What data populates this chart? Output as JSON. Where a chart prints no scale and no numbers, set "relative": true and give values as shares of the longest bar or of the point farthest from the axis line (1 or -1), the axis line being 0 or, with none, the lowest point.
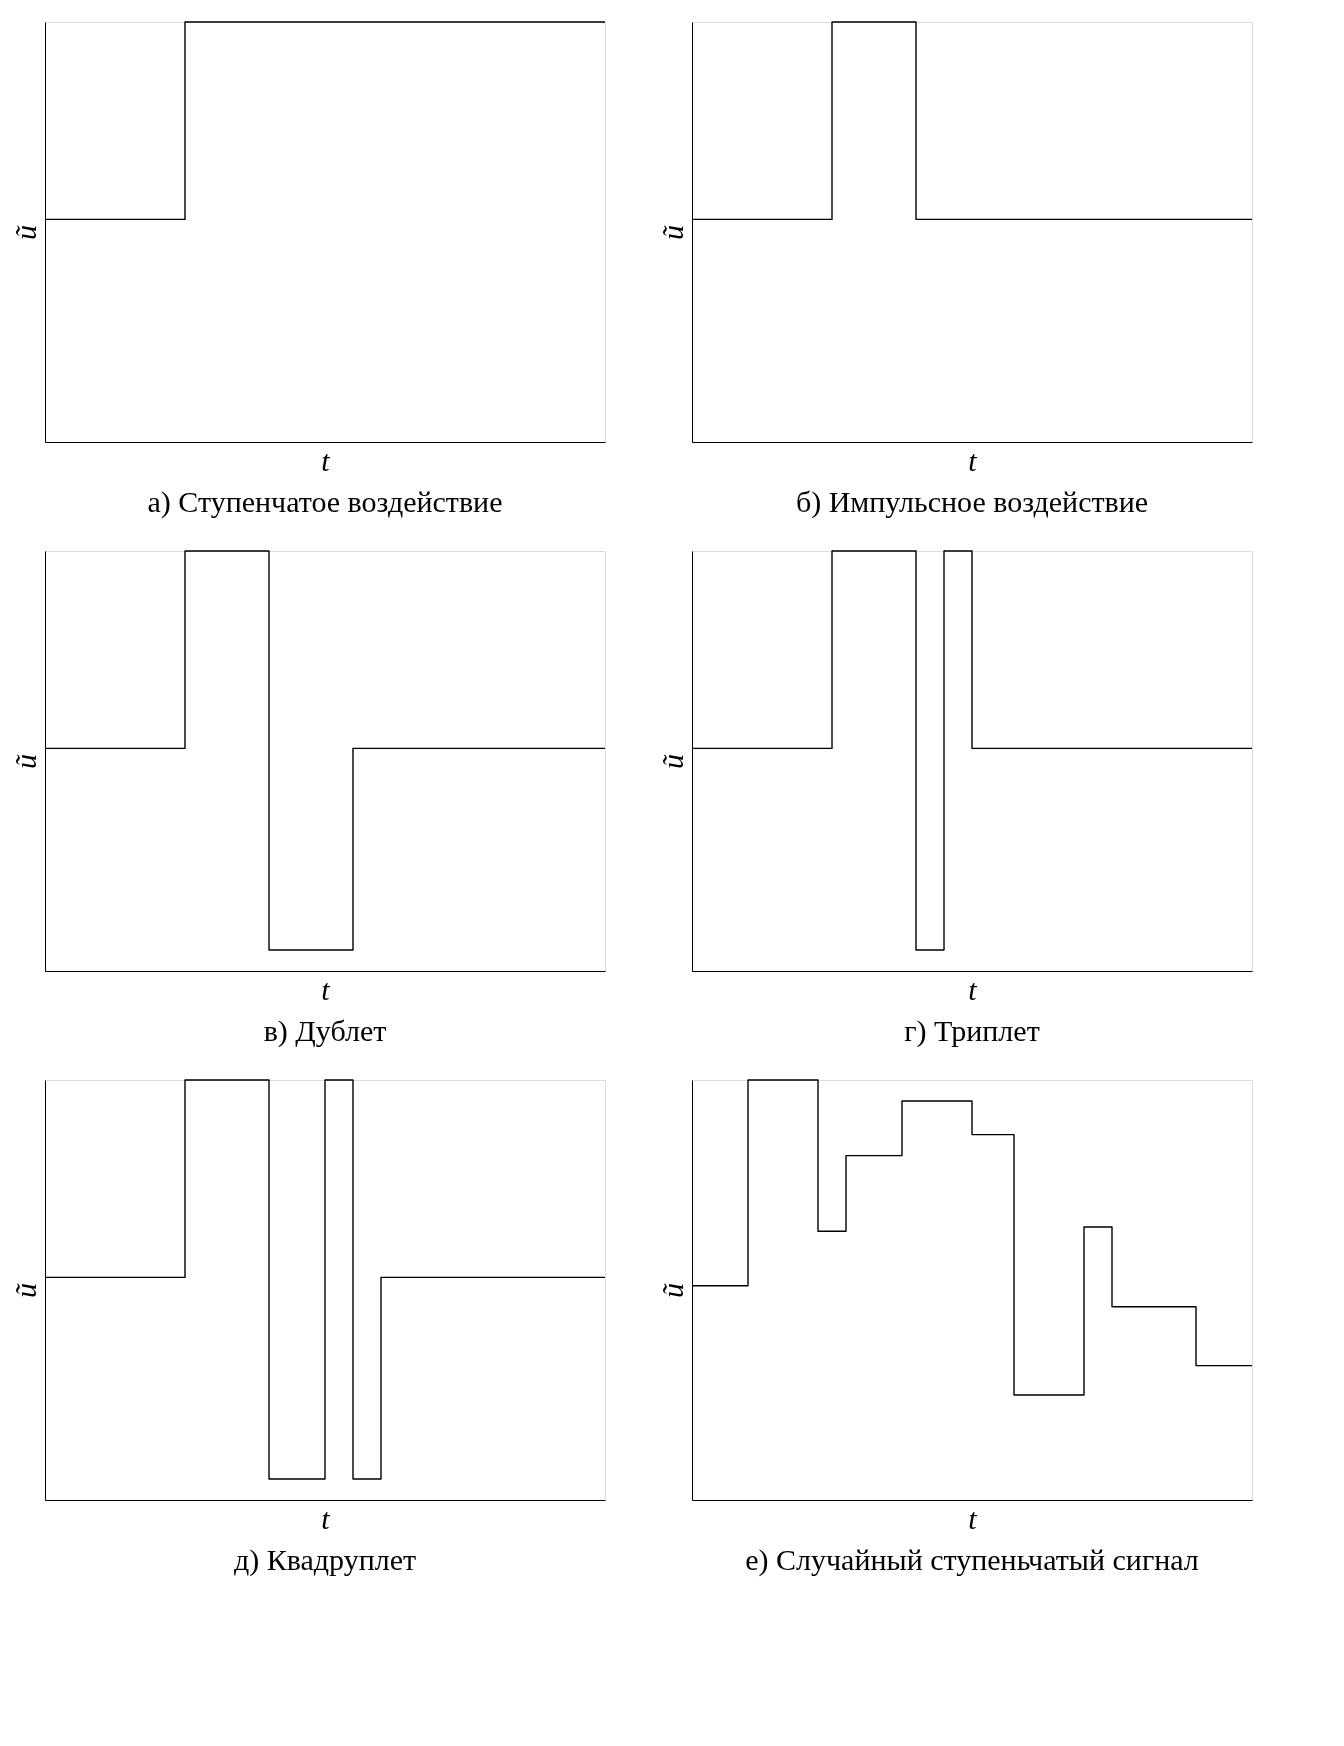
{
  "chart_data": [
    {
      "type": "step",
      "relative": true,
      "title": "а) Ступенчатое воздействие",
      "xlabel": "t",
      "ylabel": "ũ",
      "categories": [
        null,
        null,
        null,
        null,
        null,
        null,
        null,
        null,
        null,
        null,
        null,
        null,
        null,
        null,
        null,
        null,
        null,
        null,
        null,
        null,
        null,
        null,
        null,
        null,
        null,
        null,
        null,
        null,
        null,
        null,
        null,
        null,
        null,
        null,
        null,
        null,
        null,
        null,
        null,
        null,
        null
      ],
      "series": [
        {
          "color": "#000000",
          "values": [
            0.53,
            0.53,
            0.53,
            0.53,
            0.53,
            0.53,
            0.53,
            0.53,
            0.53,
            0.53,
            1,
            1,
            1,
            1,
            1,
            1,
            1,
            1,
            1,
            1,
            1,
            1,
            1,
            1,
            1,
            1,
            1,
            1,
            1,
            1,
            1,
            1,
            1,
            1,
            1,
            1,
            1,
            1,
            1,
            1,
            1
          ]
        }
      ]
    },
    {
      "type": "step",
      "relative": true,
      "title": "б) Импульсное воздействие",
      "xlabel": "t",
      "ylabel": "ũ",
      "categories": [
        null,
        null,
        null,
        null,
        null,
        null,
        null,
        null,
        null,
        null,
        null,
        null,
        null,
        null,
        null,
        null,
        null,
        null,
        null,
        null,
        null,
        null,
        null,
        null,
        null,
        null,
        null,
        null,
        null,
        null,
        null,
        null,
        null,
        null,
        null,
        null,
        null,
        null,
        null,
        null,
        null
      ],
      "series": [
        {
          "color": "#000000",
          "values": [
            0.53,
            0.53,
            0.53,
            0.53,
            0.53,
            0.53,
            0.53,
            0.53,
            0.53,
            0.53,
            1,
            1,
            1,
            1,
            1,
            1,
            0.53,
            0.53,
            0.53,
            0.53,
            0.53,
            0.53,
            0.53,
            0.53,
            0.53,
            0.53,
            0.53,
            0.53,
            0.53,
            0.53,
            0.53,
            0.53,
            0.53,
            0.53,
            0.53,
            0.53,
            0.53,
            0.53,
            0.53,
            0.53,
            0.53
          ]
        }
      ]
    },
    {
      "type": "step",
      "relative": true,
      "title": "в) Дублет",
      "xlabel": "t",
      "ylabel": "ũ",
      "categories": [
        null,
        null,
        null,
        null,
        null,
        null,
        null,
        null,
        null,
        null,
        null,
        null,
        null,
        null,
        null,
        null,
        null,
        null,
        null,
        null,
        null,
        null,
        null,
        null,
        null,
        null,
        null,
        null,
        null,
        null,
        null,
        null,
        null,
        null,
        null,
        null,
        null,
        null,
        null,
        null,
        null
      ],
      "series": [
        {
          "color": "#000000",
          "values": [
            0.53,
            0.53,
            0.53,
            0.53,
            0.53,
            0.53,
            0.53,
            0.53,
            0.53,
            0.53,
            1,
            1,
            1,
            1,
            1,
            1,
            0.05,
            0.05,
            0.05,
            0.05,
            0.05,
            0.05,
            0.53,
            0.53,
            0.53,
            0.53,
            0.53,
            0.53,
            0.53,
            0.53,
            0.53,
            0.53,
            0.53,
            0.53,
            0.53,
            0.53,
            0.53,
            0.53,
            0.53,
            0.53,
            0.53
          ]
        }
      ]
    },
    {
      "type": "step",
      "relative": true,
      "title": "г) Триплет",
      "xlabel": "t",
      "ylabel": "ũ",
      "categories": [
        null,
        null,
        null,
        null,
        null,
        null,
        null,
        null,
        null,
        null,
        null,
        null,
        null,
        null,
        null,
        null,
        null,
        null,
        null,
        null,
        null,
        null,
        null,
        null,
        null,
        null,
        null,
        null,
        null,
        null,
        null,
        null,
        null,
        null,
        null,
        null,
        null,
        null,
        null,
        null,
        null
      ],
      "series": [
        {
          "color": "#000000",
          "values": [
            0.53,
            0.53,
            0.53,
            0.53,
            0.53,
            0.53,
            0.53,
            0.53,
            0.53,
            0.53,
            1,
            1,
            1,
            1,
            1,
            1,
            0.05,
            0.05,
            1,
            1,
            0.53,
            0.53,
            0.53,
            0.53,
            0.53,
            0.53,
            0.53,
            0.53,
            0.53,
            0.53,
            0.53,
            0.53,
            0.53,
            0.53,
            0.53,
            0.53,
            0.53,
            0.53,
            0.53,
            0.53,
            0.53
          ]
        }
      ]
    },
    {
      "type": "step",
      "relative": true,
      "title": "д) Квадруплет",
      "xlabel": "t",
      "ylabel": "ũ",
      "categories": [
        null,
        null,
        null,
        null,
        null,
        null,
        null,
        null,
        null,
        null,
        null,
        null,
        null,
        null,
        null,
        null,
        null,
        null,
        null,
        null,
        null,
        null,
        null,
        null,
        null,
        null,
        null,
        null,
        null,
        null,
        null,
        null,
        null,
        null,
        null,
        null,
        null,
        null,
        null,
        null,
        null
      ],
      "series": [
        {
          "color": "#000000",
          "values": [
            0.53,
            0.53,
            0.53,
            0.53,
            0.53,
            0.53,
            0.53,
            0.53,
            0.53,
            0.53,
            1,
            1,
            1,
            1,
            1,
            1,
            0.05,
            0.05,
            0.05,
            0.05,
            1,
            1,
            0.05,
            0.05,
            0.53,
            0.53,
            0.53,
            0.53,
            0.53,
            0.53,
            0.53,
            0.53,
            0.53,
            0.53,
            0.53,
            0.53,
            0.53,
            0.53,
            0.53,
            0.53,
            0.53
          ]
        }
      ]
    },
    {
      "type": "step",
      "relative": true,
      "title": "е) Случайный ступеньчатый сигнал",
      "xlabel": "t",
      "ylabel": "ũ",
      "categories": [
        null,
        null,
        null,
        null,
        null,
        null,
        null,
        null,
        null,
        null,
        null,
        null,
        null,
        null,
        null,
        null,
        null,
        null,
        null,
        null,
        null,
        null,
        null,
        null,
        null,
        null,
        null,
        null,
        null,
        null,
        null,
        null,
        null,
        null,
        null,
        null,
        null,
        null,
        null,
        null,
        null
      ],
      "series": [
        {
          "color": "#000000",
          "values": [
            0.51,
            0.51,
            0.51,
            0.51,
            1,
            1,
            1,
            1,
            1,
            0.64,
            0.64,
            0.82,
            0.82,
            0.82,
            0.82,
            0.95,
            0.95,
            0.95,
            0.95,
            0.95,
            0.87,
            0.87,
            0.87,
            0.25,
            0.25,
            0.25,
            0.25,
            0.25,
            0.65,
            0.65,
            0.46,
            0.46,
            0.46,
            0.46,
            0.46,
            0.46,
            0.32,
            0.32,
            0.32,
            0.32,
            0.32
          ]
        }
      ]
    }
  ]
}
